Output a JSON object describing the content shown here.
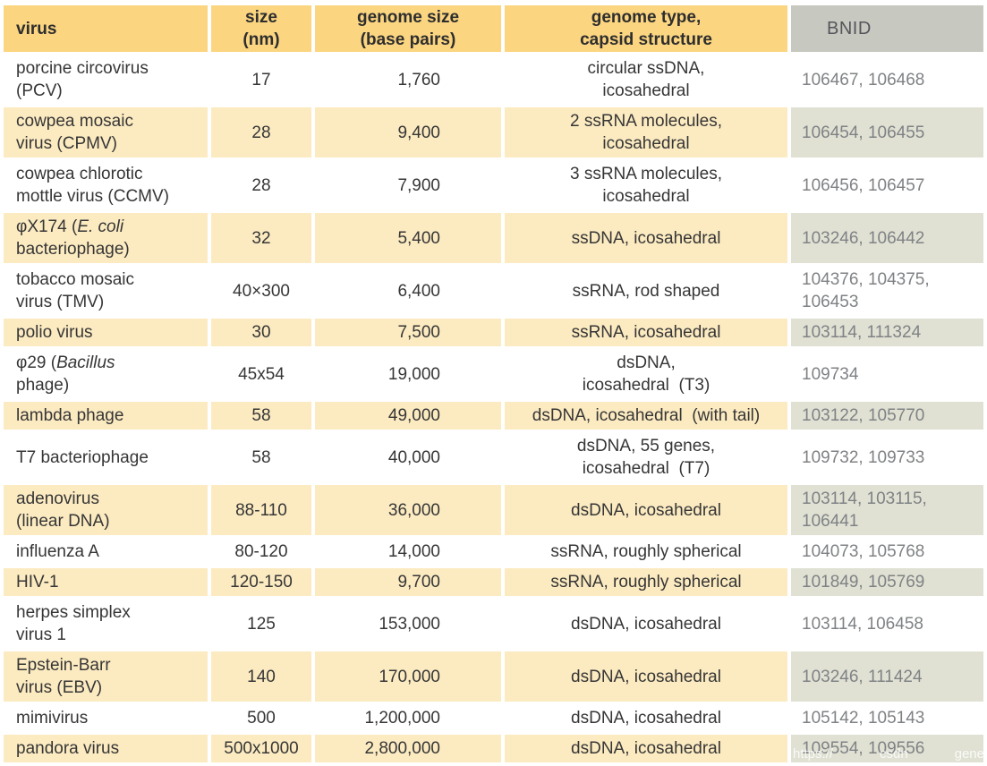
{
  "palette": {
    "header_amber": "#FBD580",
    "row_cream": "#FCEBC1",
    "row_white": "#FFFFFF",
    "bnid_header_gray": "#C7C8C0",
    "bnid_cell_sage": "#E0E1D3",
    "bnid_text_gray": "#7F8285",
    "body_text": "#363636"
  },
  "watermark": {
    "fragments": [
      "https://",
      "csdn",
      "gene"
    ]
  },
  "table": {
    "columns": [
      {
        "id": "virus",
        "label": "virus"
      },
      {
        "id": "size",
        "label": "size\n(nm)"
      },
      {
        "id": "genome_size",
        "label": "genome size\n(base pairs)"
      },
      {
        "id": "genome_type",
        "label": "genome type,\ncapsid structure"
      },
      {
        "id": "bnid",
        "label": "BNID"
      }
    ],
    "rows": [
      {
        "virus": [
          {
            "t": "porcine circovirus\n(PCV)"
          }
        ],
        "size": "17",
        "genome_size": "1,760",
        "genome_type": "circular ssDNA,\nicosahedral",
        "bnid": "106467, 106468",
        "shaded": false
      },
      {
        "virus": [
          {
            "t": "cowpea mosaic\nvirus (CPMV)"
          }
        ],
        "size": "28",
        "genome_size": "9,400",
        "genome_type": "2 ssRNA molecules,\nicosahedral",
        "bnid": "106454, 106455",
        "shaded": true
      },
      {
        "virus": [
          {
            "t": "cowpea chlorotic\nmottle virus (CCMV)"
          }
        ],
        "size": "28",
        "genome_size": "7,900",
        "genome_type": "3 ssRNA molecules,\nicosahedral",
        "bnid": "106456, 106457",
        "shaded": false
      },
      {
        "virus": [
          {
            "t": "φX174 ("
          },
          {
            "t": "E. coli",
            "i": true
          },
          {
            "t": "\nbacteriophage)"
          }
        ],
        "size": "32",
        "genome_size": "5,400",
        "genome_type": "ssDNA, icosahedral",
        "bnid": "103246, 106442",
        "shaded": true
      },
      {
        "virus": [
          {
            "t": "tobacco mosaic\nvirus (TMV)"
          }
        ],
        "size": "40×300",
        "genome_size": "6,400",
        "genome_type": "ssRNA, rod shaped",
        "bnid": "104376, 104375,\n106453",
        "shaded": false
      },
      {
        "virus": [
          {
            "t": "polio virus"
          }
        ],
        "size": "30",
        "genome_size": "7,500",
        "genome_type": "ssRNA, icosahedral",
        "bnid": "103114, 111324",
        "shaded": true
      },
      {
        "virus": [
          {
            "t": "φ29 ("
          },
          {
            "t": "Bacillus",
            "i": true
          },
          {
            "t": "\nphage)"
          }
        ],
        "size": "45x54",
        "genome_size": "19,000",
        "genome_type": "dsDNA,\nicosahedral  (T3)",
        "bnid": "109734",
        "shaded": false
      },
      {
        "virus": [
          {
            "t": "lambda phage"
          }
        ],
        "size": "58",
        "genome_size": "49,000",
        "genome_type": "dsDNA, icosahedral  (with tail)",
        "bnid": "103122, 105770",
        "shaded": true
      },
      {
        "virus": [
          {
            "t": "T7 bacteriophage"
          }
        ],
        "size": "58",
        "genome_size": "40,000",
        "genome_type": "dsDNA, 55 genes,\nicosahedral  (T7)",
        "bnid": "109732, 109733",
        "shaded": false
      },
      {
        "virus": [
          {
            "t": "adenovirus\n(linear DNA)"
          }
        ],
        "size": "88-110",
        "genome_size": "36,000",
        "genome_type": "dsDNA, icosahedral",
        "bnid": "103114, 103115,\n106441",
        "shaded": true
      },
      {
        "virus": [
          {
            "t": "influenza A"
          }
        ],
        "size": "80-120",
        "genome_size": "14,000",
        "genome_type": "ssRNA, roughly spherical",
        "bnid": "104073, 105768",
        "shaded": false
      },
      {
        "virus": [
          {
            "t": "HIV-1"
          }
        ],
        "size": "120-150",
        "genome_size": "9,700",
        "genome_type": "ssRNA, roughly spherical",
        "bnid": "101849, 105769",
        "shaded": true
      },
      {
        "virus": [
          {
            "t": "herpes simplex\nvirus 1"
          }
        ],
        "size": "125",
        "genome_size": "153,000",
        "genome_type": "dsDNA, icosahedral",
        "bnid": "103114, 106458",
        "shaded": false
      },
      {
        "virus": [
          {
            "t": "Epstein-Barr\nvirus (EBV)"
          }
        ],
        "size": "140",
        "genome_size": "170,000",
        "genome_type": "dsDNA, icosahedral",
        "bnid": "103246, 111424",
        "shaded": true
      },
      {
        "virus": [
          {
            "t": "mimivirus"
          }
        ],
        "size": "500",
        "genome_size": "1,200,000",
        "genome_type": "dsDNA, icosahedral",
        "bnid": "105142, 105143",
        "shaded": false
      },
      {
        "virus": [
          {
            "t": "pandora virus"
          }
        ],
        "size": "500x1000",
        "genome_size": "2,800,000",
        "genome_type": "dsDNA, icosahedral",
        "bnid": "109554, 109556",
        "shaded": true
      }
    ]
  }
}
